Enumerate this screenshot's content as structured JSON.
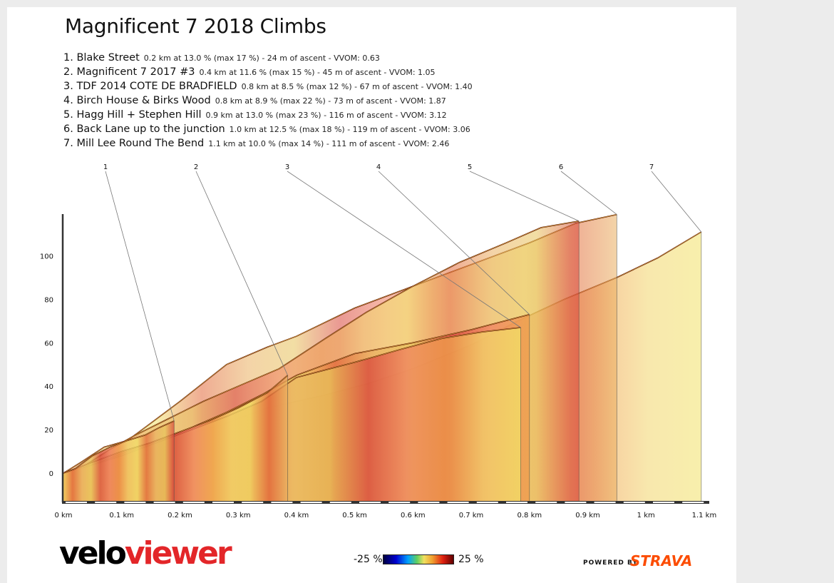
{
  "chart_data": {
    "type": "area",
    "title": "Magnificent 7 2018 Climbs",
    "climbs": [
      {
        "label": "1",
        "name": "Blake Street",
        "stats": "0.2 km at 13.0 % (max 17 %) - 24 m of ascent - VVOM: 0.63",
        "distance_km": 0.19,
        "profile": [
          [
            0,
            0
          ],
          [
            0.02,
            2
          ],
          [
            0.05,
            8
          ],
          [
            0.08,
            12
          ],
          [
            0.11,
            15
          ],
          [
            0.14,
            17.5
          ],
          [
            0.165,
            21
          ],
          [
            0.19,
            24
          ]
        ]
      },
      {
        "label": "2",
        "name": "Magnificent 7 2017 #3",
        "stats": "0.4 km at 11.6 % (max 15 %) - 45 m of ascent - VVOM: 1.05",
        "distance_km": 0.385,
        "profile": [
          [
            0,
            0
          ],
          [
            0.03,
            3
          ],
          [
            0.06,
            6
          ],
          [
            0.1,
            10
          ],
          [
            0.15,
            14
          ],
          [
            0.2,
            19
          ],
          [
            0.25,
            24
          ],
          [
            0.3,
            30
          ],
          [
            0.35,
            37
          ],
          [
            0.385,
            45
          ]
        ]
      },
      {
        "label": "3",
        "name": "TDF 2014 COTE DE BRADFIELD",
        "stats": "0.8 km at 8.5 % (max 12 %) - 67 m of ascent - VVOM: 1.40",
        "distance_km": 0.785,
        "profile": [
          [
            0,
            0
          ],
          [
            0.04,
            3
          ],
          [
            0.1,
            8
          ],
          [
            0.16,
            14
          ],
          [
            0.22,
            20
          ],
          [
            0.28,
            26
          ],
          [
            0.34,
            33
          ],
          [
            0.4,
            44
          ],
          [
            0.5,
            51
          ],
          [
            0.58,
            57
          ],
          [
            0.65,
            62
          ],
          [
            0.72,
            65
          ],
          [
            0.785,
            67
          ]
        ]
      },
      {
        "label": "4",
        "name": "Birch House & Birks Wood",
        "stats": "0.8 km at 8.9 % (max 22 %) - 73 m of ascent - VVOM: 1.87",
        "distance_km": 0.8,
        "profile": [
          [
            0,
            0
          ],
          [
            0.04,
            3
          ],
          [
            0.1,
            9
          ],
          [
            0.16,
            15
          ],
          [
            0.22,
            21
          ],
          [
            0.28,
            28
          ],
          [
            0.34,
            36
          ],
          [
            0.4,
            45
          ],
          [
            0.5,
            55
          ],
          [
            0.6,
            60
          ],
          [
            0.7,
            66
          ],
          [
            0.8,
            73
          ]
        ]
      },
      {
        "label": "5",
        "name": "Hagg Hill + Stephen Hill",
        "stats": "0.9 km at 13.0 % (max 23 %) - 116 m of ascent - VVOM: 3.12",
        "distance_km": 0.885,
        "profile": [
          [
            0,
            0
          ],
          [
            0.04,
            4
          ],
          [
            0.08,
            11
          ],
          [
            0.12,
            17
          ],
          [
            0.18,
            25
          ],
          [
            0.24,
            33
          ],
          [
            0.3,
            40
          ],
          [
            0.37,
            48
          ],
          [
            0.45,
            62
          ],
          [
            0.52,
            74
          ],
          [
            0.6,
            86
          ],
          [
            0.68,
            97
          ],
          [
            0.76,
            106
          ],
          [
            0.82,
            113
          ],
          [
            0.885,
            116
          ]
        ]
      },
      {
        "label": "6",
        "name": "Back Lane up to the junction",
        "stats": "1.0 km at 12.5 % (max 18 %) - 119 m of ascent - VVOM: 3.06",
        "distance_km": 0.95,
        "profile": [
          [
            0,
            0
          ],
          [
            0.03,
            5
          ],
          [
            0.07,
            12
          ],
          [
            0.11,
            15
          ],
          [
            0.15,
            23
          ],
          [
            0.2,
            33
          ],
          [
            0.28,
            50
          ],
          [
            0.35,
            58
          ],
          [
            0.4,
            63
          ],
          [
            0.5,
            76
          ],
          [
            0.6,
            86
          ],
          [
            0.7,
            96
          ],
          [
            0.8,
            106
          ],
          [
            0.88,
            115
          ],
          [
            0.95,
            119
          ]
        ]
      },
      {
        "label": "7",
        "name": "Mill Lee Round The Bend",
        "stats": "1.1 km at 10.0 % (max 14 %) - 111 m of ascent - VVOM: 2.46",
        "distance_km": 1.095,
        "profile": [
          [
            0,
            0
          ],
          [
            0.05,
            3
          ],
          [
            0.1,
            7
          ],
          [
            0.15,
            12
          ],
          [
            0.2,
            17
          ],
          [
            0.27,
            22
          ],
          [
            0.35,
            30
          ],
          [
            0.45,
            36
          ],
          [
            0.52,
            41
          ],
          [
            0.6,
            48
          ],
          [
            0.7,
            59
          ],
          [
            0.78,
            70
          ],
          [
            0.86,
            80
          ],
          [
            0.95,
            90
          ],
          [
            1.02,
            99
          ],
          [
            1.095,
            111
          ]
        ]
      }
    ],
    "x_ticks": [
      "0 km",
      "0.1 km",
      "0.2 km",
      "0.3 km",
      "0.4 km",
      "0.5 km",
      "0.6 km",
      "0.7 km",
      "0.8 km",
      "0.9 km",
      "1 km",
      "1.1 km"
    ],
    "x_tick_values": [
      0,
      0.1,
      0.2,
      0.3,
      0.4,
      0.5,
      0.6,
      0.7,
      0.8,
      0.9,
      1.0,
      1.1
    ],
    "y_ticks": [
      "0",
      "20",
      "40",
      "60",
      "80",
      "100"
    ],
    "y_tick_values": [
      0,
      20,
      40,
      60,
      80,
      100
    ],
    "xlim": [
      0,
      1.1
    ],
    "ylim": [
      -12,
      120
    ],
    "legend": {
      "min_label": "-25 %",
      "max_label": "25 %"
    }
  },
  "branding": {
    "logo_a": "velo",
    "logo_b": "viewer",
    "powered_by": "POWERED BY",
    "strava": "STRAVA"
  }
}
